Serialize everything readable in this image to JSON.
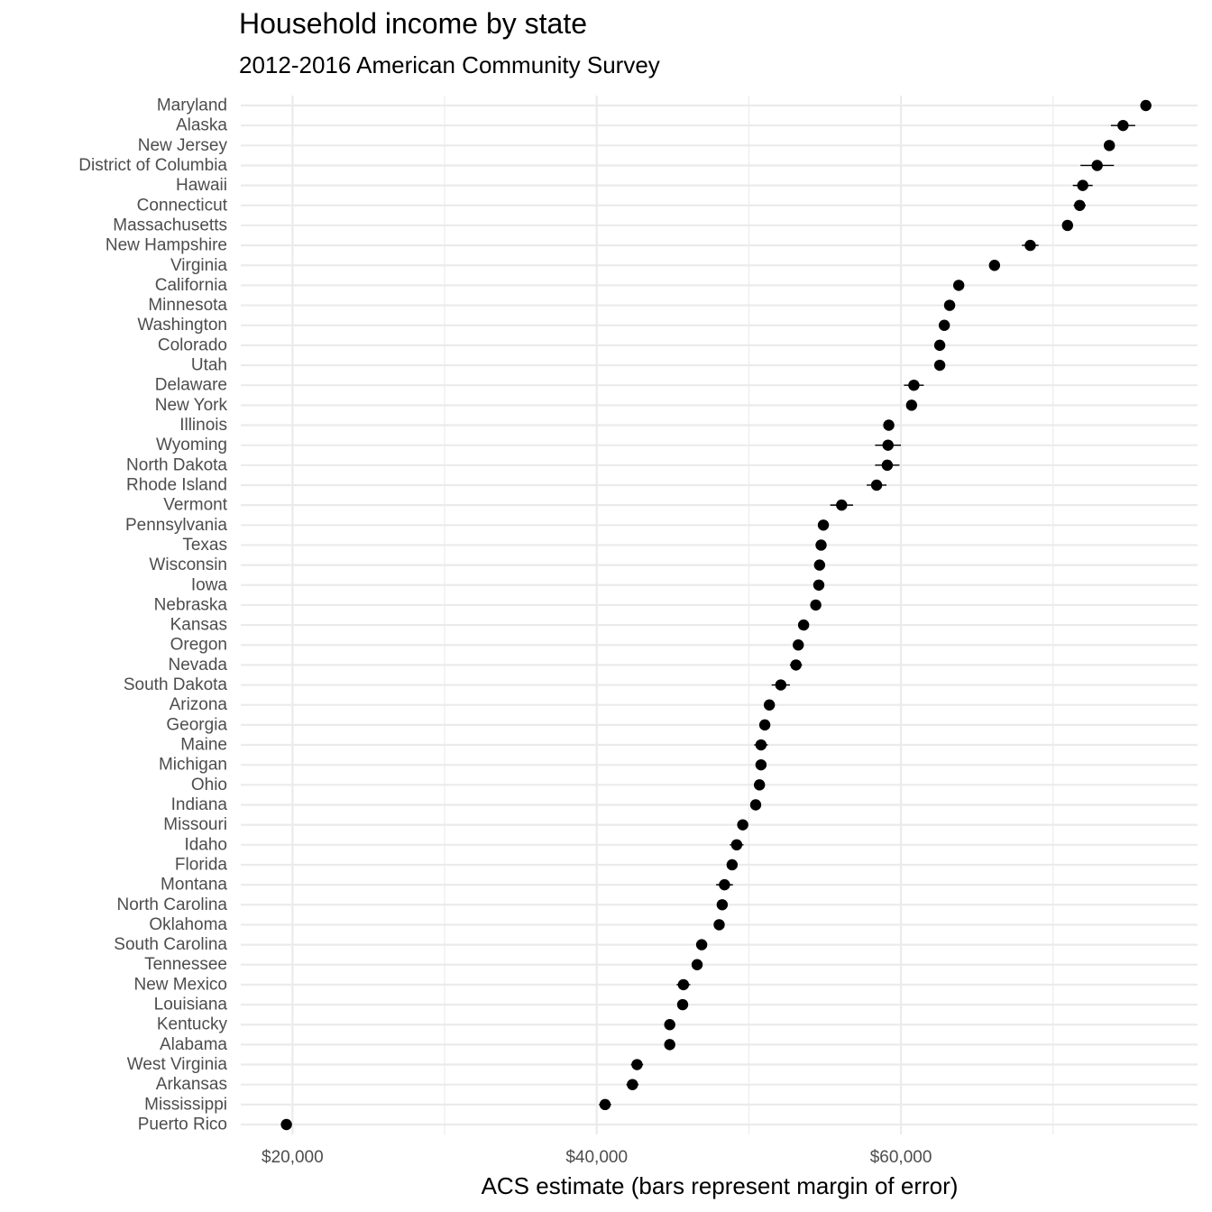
{
  "chart_data": {
    "type": "scatter",
    "title": "Household income by state",
    "subtitle": "2012-2016 American Community Survey",
    "xlabel": "ACS estimate (bars represent margin of error)",
    "ylabel": "",
    "xlim": [
      16600,
      79500
    ],
    "x_ticks": [
      20000,
      40000,
      60000
    ],
    "x_tick_labels": [
      "$20,000",
      "$40,000",
      "$60,000"
    ],
    "grid": true,
    "legend": "none",
    "point_color": "#000000",
    "points": [
      {
        "state": "Maryland",
        "estimate": 76100,
        "moe": 350
      },
      {
        "state": "Alaska",
        "estimate": 74600,
        "moe": 800
      },
      {
        "state": "New Jersey",
        "estimate": 73700,
        "moe": 300
      },
      {
        "state": "District of Columbia",
        "estimate": 72900,
        "moe": 1100
      },
      {
        "state": "Hawaii",
        "estimate": 71950,
        "moe": 650
      },
      {
        "state": "Connecticut",
        "estimate": 71750,
        "moe": 400
      },
      {
        "state": "Massachusetts",
        "estimate": 70950,
        "moe": 350
      },
      {
        "state": "New Hampshire",
        "estimate": 68500,
        "moe": 550
      },
      {
        "state": "Virginia",
        "estimate": 66150,
        "moe": 300
      },
      {
        "state": "California",
        "estimate": 63800,
        "moe": 200
      },
      {
        "state": "Minnesota",
        "estimate": 63200,
        "moe": 300
      },
      {
        "state": "Washington",
        "estimate": 62850,
        "moe": 300
      },
      {
        "state": "Colorado",
        "estimate": 62550,
        "moe": 350
      },
      {
        "state": "Utah",
        "estimate": 62550,
        "moe": 350
      },
      {
        "state": "Delaware",
        "estimate": 60850,
        "moe": 650
      },
      {
        "state": "New York",
        "estimate": 60700,
        "moe": 250
      },
      {
        "state": "Illinois",
        "estimate": 59200,
        "moe": 250
      },
      {
        "state": "Wyoming",
        "estimate": 59150,
        "moe": 850
      },
      {
        "state": "North Dakota",
        "estimate": 59100,
        "moe": 800
      },
      {
        "state": "Rhode Island",
        "estimate": 58400,
        "moe": 650
      },
      {
        "state": "Vermont",
        "estimate": 56100,
        "moe": 750
      },
      {
        "state": "Pennsylvania",
        "estimate": 54900,
        "moe": 200
      },
      {
        "state": "Texas",
        "estimate": 54750,
        "moe": 150
      },
      {
        "state": "Wisconsin",
        "estimate": 54650,
        "moe": 250
      },
      {
        "state": "Iowa",
        "estimate": 54600,
        "moe": 300
      },
      {
        "state": "Nebraska",
        "estimate": 54400,
        "moe": 350
      },
      {
        "state": "Kansas",
        "estimate": 53600,
        "moe": 350
      },
      {
        "state": "Oregon",
        "estimate": 53250,
        "moe": 350
      },
      {
        "state": "Nevada",
        "estimate": 53100,
        "moe": 400
      },
      {
        "state": "South Dakota",
        "estimate": 52100,
        "moe": 600
      },
      {
        "state": "Arizona",
        "estimate": 51350,
        "moe": 300
      },
      {
        "state": "Georgia",
        "estimate": 51050,
        "moe": 250
      },
      {
        "state": "Maine",
        "estimate": 50800,
        "moe": 450
      },
      {
        "state": "Michigan",
        "estimate": 50800,
        "moe": 250
      },
      {
        "state": "Ohio",
        "estimate": 50700,
        "moe": 250
      },
      {
        "state": "Indiana",
        "estimate": 50450,
        "moe": 300
      },
      {
        "state": "Missouri",
        "estimate": 49600,
        "moe": 250
      },
      {
        "state": "Idaho",
        "estimate": 49200,
        "moe": 450
      },
      {
        "state": "Florida",
        "estimate": 48900,
        "moe": 200
      },
      {
        "state": "Montana",
        "estimate": 48400,
        "moe": 550
      },
      {
        "state": "North Carolina",
        "estimate": 48250,
        "moe": 300
      },
      {
        "state": "Oklahoma",
        "estimate": 48050,
        "moe": 300
      },
      {
        "state": "South Carolina",
        "estimate": 46900,
        "moe": 300
      },
      {
        "state": "Tennessee",
        "estimate": 46600,
        "moe": 300
      },
      {
        "state": "New Mexico",
        "estimate": 45700,
        "moe": 450
      },
      {
        "state": "Louisiana",
        "estimate": 45650,
        "moe": 350
      },
      {
        "state": "Kentucky",
        "estimate": 44800,
        "moe": 350
      },
      {
        "state": "Alabama",
        "estimate": 44800,
        "moe": 350
      },
      {
        "state": "West Virginia",
        "estimate": 42650,
        "moe": 400
      },
      {
        "state": "Arkansas",
        "estimate": 42350,
        "moe": 400
      },
      {
        "state": "Mississippi",
        "estimate": 40550,
        "moe": 400
      },
      {
        "state": "Puerto Rico",
        "estimate": 19600,
        "moe": 300
      }
    ]
  }
}
